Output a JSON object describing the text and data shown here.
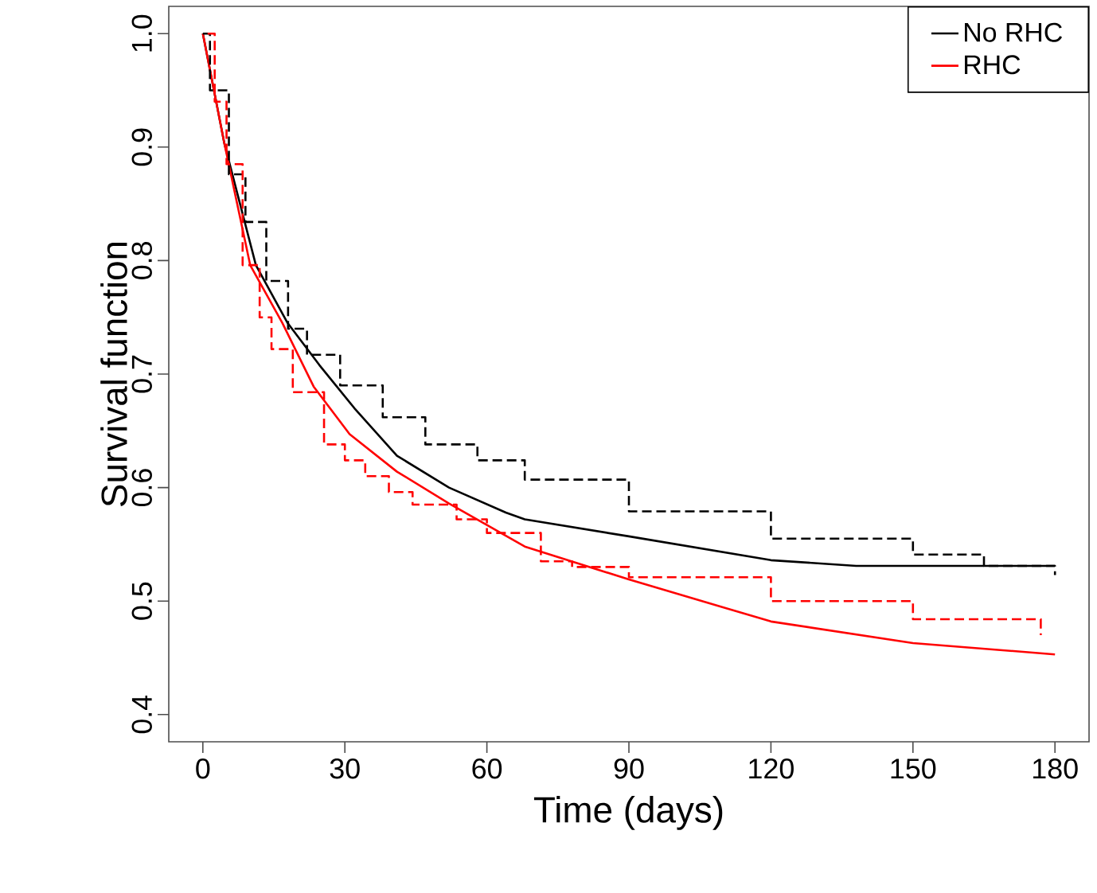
{
  "chart_data": {
    "type": "line",
    "xlabel": "Time (days)",
    "ylabel": "Survival function",
    "xlim": [
      -7.2,
      187.2
    ],
    "ylim": [
      0.376,
      1.024
    ],
    "xticks": [
      0,
      30,
      60,
      90,
      120,
      150,
      180
    ],
    "yticks": [
      0.4,
      0.5,
      0.6,
      0.7,
      0.8,
      0.9,
      {
        "value": 1.0,
        "label": "1.0"
      }
    ],
    "legend": "top right",
    "grid": false,
    "series": [
      {
        "name": "No RHC",
        "color": "#000000",
        "line_style": "solid",
        "x": [
          0,
          4.5,
          11.2,
          17.9,
          24.6,
          32,
          41,
          52,
          64,
          68,
          90,
          120,
          138,
          180
        ],
        "values": [
          1.0,
          0.904,
          0.796,
          0.745,
          0.708,
          0.67,
          0.628,
          0.6,
          0.578,
          0.572,
          0.557,
          0.536,
          0.531,
          0.531
        ]
      },
      {
        "name": "RHC",
        "color": "#ff0000",
        "line_style": "solid",
        "x": [
          0,
          4.5,
          10,
          16.8,
          23.4,
          31,
          41,
          52,
          68,
          90,
          120,
          150,
          180
        ],
        "values": [
          1.0,
          0.904,
          0.796,
          0.745,
          0.689,
          0.647,
          0.614,
          0.586,
          0.548,
          0.519,
          0.482,
          0.463,
          0.453
        ]
      },
      {
        "type": "step",
        "color": "#000000",
        "line_style": "dashed",
        "x": [
          0,
          1.5,
          5.5,
          9,
          13.4,
          18,
          22,
          29,
          38,
          47,
          58,
          68,
          90,
          120,
          150,
          165,
          180
        ],
        "values": [
          1.0,
          0.95,
          0.876,
          0.834,
          0.782,
          0.74,
          0.717,
          0.69,
          0.662,
          0.638,
          0.624,
          0.607,
          0.579,
          0.555,
          0.541,
          0.531,
          0.523
        ]
      },
      {
        "type": "step",
        "color": "#ff0000",
        "line_style": "dashed",
        "x": [
          1,
          2.5,
          5,
          8.4,
          12,
          14.5,
          19,
          25.6,
          30,
          34.3,
          39.3,
          44.3,
          53.6,
          60,
          71.4,
          78,
          90,
          120,
          150,
          177
        ],
        "values": [
          1.0,
          0.94,
          0.885,
          0.796,
          0.75,
          0.722,
          0.684,
          0.638,
          0.624,
          0.61,
          0.596,
          0.585,
          0.572,
          0.56,
          0.535,
          0.53,
          0.521,
          0.5,
          0.484,
          0.47
        ]
      }
    ]
  }
}
